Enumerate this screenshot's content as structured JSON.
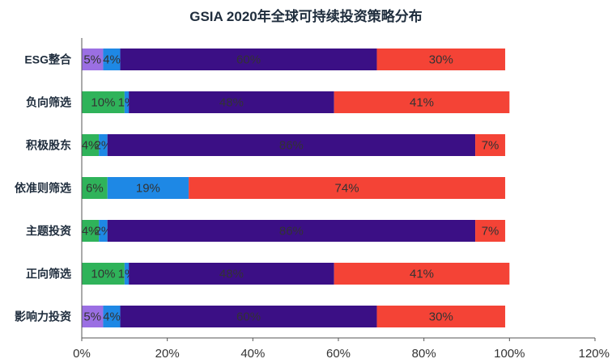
{
  "chart_data": {
    "type": "bar",
    "orientation": "horizontal",
    "stacked": true,
    "title": "GSIA 2020年全球可持续投资策略分布",
    "categories": [
      "ESG整合",
      "负向筛选",
      "积极股东",
      "依准则筛选",
      "主题投资",
      "正向筛选",
      "影响力投资"
    ],
    "series": [
      {
        "color": "#9b6fe3",
        "values": [
          5,
          0,
          0,
          0,
          0,
          0,
          5
        ]
      },
      {
        "color": "#2fb35a",
        "values": [
          0,
          10,
          4,
          6,
          4,
          10,
          0
        ]
      },
      {
        "color": "#1e88e5",
        "values": [
          4,
          1,
          2,
          19,
          2,
          1,
          4
        ]
      },
      {
        "color": "#3b0f85",
        "values": [
          60,
          48,
          86,
          0,
          86,
          48,
          60
        ]
      },
      {
        "color": "#f44336",
        "values": [
          30,
          41,
          7,
          74,
          7,
          41,
          30
        ]
      }
    ],
    "x_ticks": [
      "0%",
      "20%",
      "40%",
      "60%",
      "80%",
      "100%",
      "120%"
    ],
    "xlim": [
      0,
      120
    ],
    "grid": false,
    "legend": "none"
  }
}
